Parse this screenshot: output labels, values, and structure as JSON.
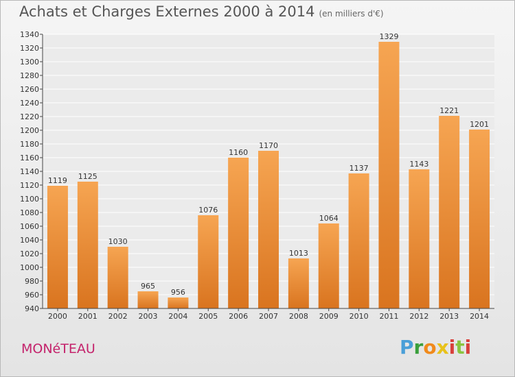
{
  "page": {
    "title": "Achats et Charges Externes 2000 à 2014",
    "unit_note": "(en milliers d'€)",
    "commune": "MONéTEAU",
    "brand": [
      "P",
      "r",
      "o",
      "x",
      "i",
      "t",
      "i"
    ]
  },
  "chart_data": {
    "type": "bar",
    "title": "Achats et Charges Externes 2000 à 2014",
    "subtitle": "(en milliers d'€)",
    "categories": [
      "2000",
      "2001",
      "2002",
      "2003",
      "2004",
      "2005",
      "2006",
      "2007",
      "2008",
      "2009",
      "2010",
      "2011",
      "2012",
      "2013",
      "2014"
    ],
    "values": [
      1119,
      1125,
      1030,
      965,
      956,
      1076,
      1160,
      1170,
      1013,
      1064,
      1137,
      1329,
      1143,
      1221,
      1201
    ],
    "ylim": [
      940,
      1340
    ],
    "yticks": [
      940,
      960,
      980,
      1000,
      1020,
      1040,
      1060,
      1080,
      1100,
      1120,
      1140,
      1160,
      1180,
      1200,
      1220,
      1240,
      1260,
      1280,
      1300,
      1320,
      1340
    ],
    "grid": true,
    "bar_color": "#f0963c",
    "bar_color_dark": "#d9741f"
  }
}
